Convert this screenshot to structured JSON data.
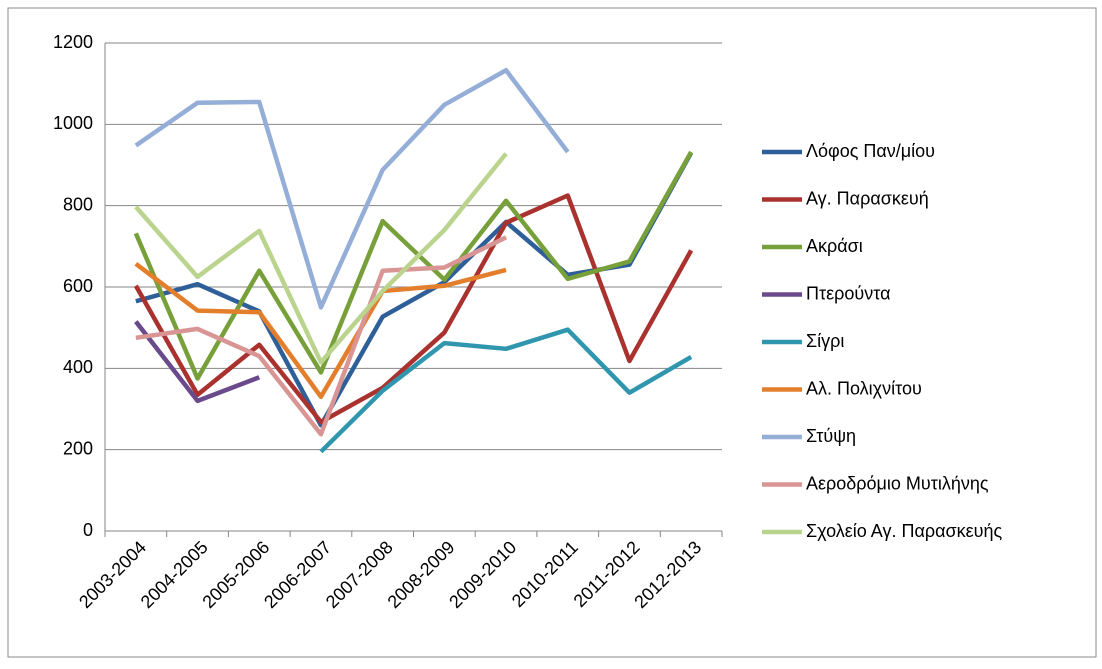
{
  "chart_data": {
    "type": "line",
    "categories": [
      "2003-2004",
      "2004-2005",
      "2005-2006",
      "2006-2007",
      "2007-2008",
      "2008-2009",
      "2009-2010",
      "2010-2011",
      "2011-2012",
      "2012-2013"
    ],
    "series": [
      {
        "name": "Λόφος Παν/μίου",
        "color": "#2f5f98",
        "values": [
          565,
          607,
          540,
          260,
          527,
          612,
          760,
          630,
          655,
          930
        ]
      },
      {
        "name": "Αγ. Παρασκευή",
        "color": "#a9322f",
        "values": [
          603,
          335,
          458,
          268,
          352,
          488,
          758,
          825,
          418,
          690
        ]
      },
      {
        "name": "Ακράσι",
        "color": "#77a03a",
        "values": [
          732,
          375,
          640,
          390,
          762,
          618,
          812,
          620,
          663,
          932
        ]
      },
      {
        "name": "Πτερούντα",
        "color": "#6a4a8c",
        "values": [
          515,
          320,
          378,
          null,
          null,
          null,
          null,
          null,
          null,
          null
        ]
      },
      {
        "name": "Σίγρι",
        "color": "#3096ae",
        "values": [
          null,
          null,
          null,
          195,
          345,
          462,
          448,
          495,
          340,
          428
        ]
      },
      {
        "name": "Αλ. Πολιχνίτου",
        "color": "#e37f2c",
        "values": [
          657,
          542,
          538,
          330,
          590,
          603,
          642,
          null,
          null,
          null
        ]
      },
      {
        "name": "Στύψη",
        "color": "#94aed8",
        "values": [
          948,
          1053,
          1055,
          550,
          888,
          1048,
          1133,
          932,
          null,
          null
        ]
      },
      {
        "name": "Αεροδρόμιο Μυτιλήνης",
        "color": "#d99594",
        "values": [
          475,
          497,
          430,
          238,
          640,
          648,
          722,
          null,
          null,
          null
        ]
      },
      {
        "name": "Σχολείο Αγ. Παρασκευής",
        "color": "#bad48e",
        "values": [
          797,
          625,
          738,
          415,
          590,
          740,
          928,
          null,
          null,
          null
        ]
      }
    ],
    "ylim": [
      0,
      1200
    ],
    "yticks": [
      0,
      200,
      400,
      600,
      800,
      1000,
      1200
    ],
    "grid": true,
    "legend": "right"
  }
}
